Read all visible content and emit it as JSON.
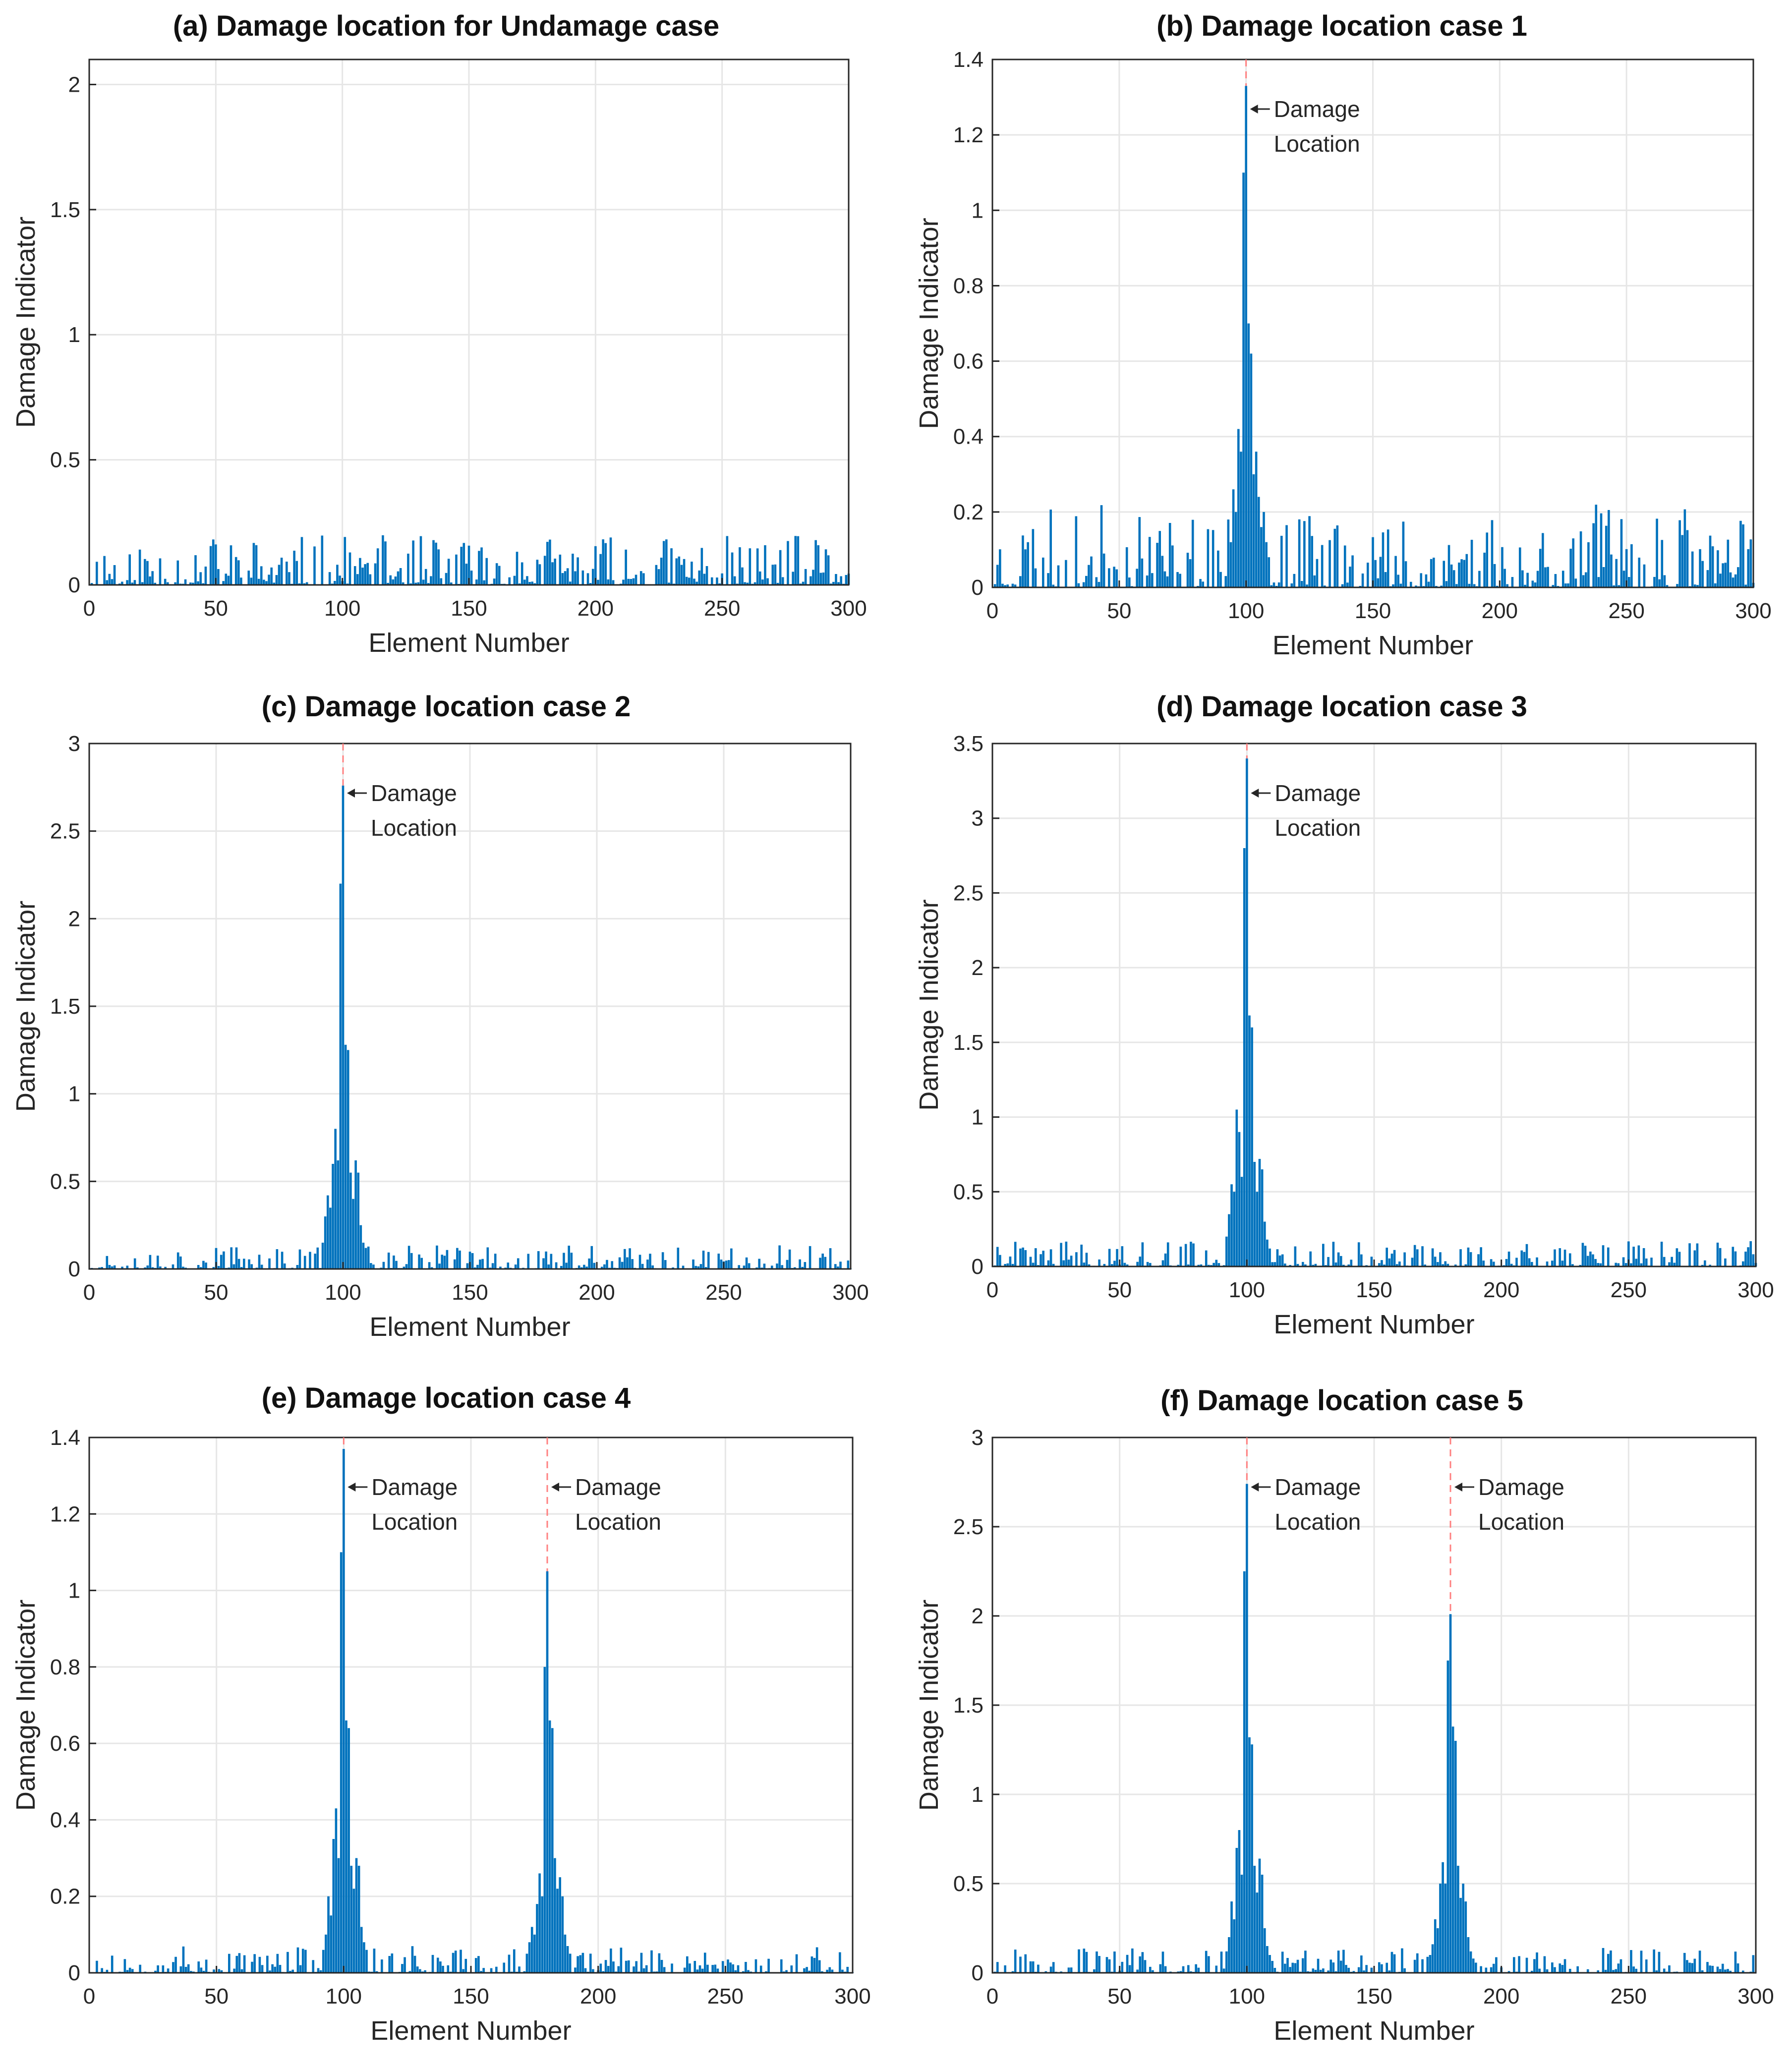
{
  "figure": {
    "series_color": "#0072BD",
    "marker_color": "#ff8080",
    "grid_color": "#e6e6e6"
  },
  "chart_data": [
    {
      "id": "a",
      "type": "bar",
      "title": "(a)  Damage location for Undamage case",
      "xlabel": "Element Number",
      "ylabel": "Damage Indicator",
      "xlim": [
        0,
        300
      ],
      "ylim": [
        0,
        2.1
      ],
      "xticks": [
        0,
        50,
        100,
        150,
        200,
        250,
        300
      ],
      "yticks": [
        0,
        0.5,
        1,
        1.5,
        2
      ],
      "ytick_labels": [
        "0",
        "0.5",
        "1",
        "1.5",
        "2"
      ],
      "noise_max": 0.2,
      "noise_seed": 11,
      "peaks": [],
      "damage_locations": [],
      "annotation_lines": []
    },
    {
      "id": "b",
      "type": "bar",
      "title": "(b)  Damage location case 1",
      "xlabel": "Element Number",
      "ylabel": "Damage Indicator",
      "xlim": [
        0,
        300
      ],
      "ylim": [
        0,
        1.4
      ],
      "xticks": [
        0,
        50,
        100,
        150,
        200,
        250,
        300
      ],
      "yticks": [
        0,
        0.2,
        0.4,
        0.6,
        0.8,
        1,
        1.2,
        1.4
      ],
      "ytick_labels": [
        "0",
        "0.2",
        "0.4",
        "0.6",
        "0.8",
        "1",
        "1.2",
        "1.4"
      ],
      "noise_max": 0.22,
      "noise_seed": 23,
      "peaks": [
        {
          "x": [
            93,
            94,
            95,
            96,
            97,
            98,
            99,
            100,
            101,
            102,
            103,
            104,
            105,
            106,
            107,
            108,
            109
          ],
          "y": [
            0.18,
            0.12,
            0.26,
            0.2,
            0.42,
            0.36,
            1.1,
            1.33,
            0.7,
            0.62,
            0.3,
            0.36,
            0.24,
            0.16,
            0.2,
            0.12,
            0.08
          ]
        }
      ],
      "damage_locations": [
        100
      ],
      "annotation_lines": [
        "Damage",
        "Location"
      ]
    },
    {
      "id": "c",
      "type": "bar",
      "title": "(c)    Damage location case 2",
      "xlabel": "Element Number",
      "ylabel": "Damage Indicator",
      "xlim": [
        0,
        300
      ],
      "ylim": [
        0,
        3
      ],
      "xticks": [
        0,
        50,
        100,
        150,
        200,
        250,
        300
      ],
      "yticks": [
        0,
        0.5,
        1,
        1.5,
        2,
        2.5,
        3
      ],
      "ytick_labels": [
        "0",
        "0.5",
        "1",
        "1.5",
        "2",
        "2.5",
        "3"
      ],
      "noise_max": 0.14,
      "noise_seed": 37,
      "peaks": [
        {
          "x": [
            92,
            93,
            94,
            95,
            96,
            97,
            98,
            99,
            100,
            101,
            102,
            103,
            104,
            105,
            106,
            107,
            108,
            109
          ],
          "y": [
            0.15,
            0.3,
            0.42,
            0.35,
            0.6,
            0.8,
            0.62,
            2.2,
            2.76,
            1.28,
            1.25,
            0.55,
            0.4,
            0.62,
            0.55,
            0.25,
            0.15,
            0.12
          ]
        }
      ],
      "damage_locations": [
        100
      ],
      "annotation_lines": [
        "Damage",
        "Location"
      ]
    },
    {
      "id": "d",
      "type": "bar",
      "title": "(d)    Damage location case 3",
      "xlabel": "Element Number",
      "ylabel": "Damage Indicator",
      "xlim": [
        0,
        300
      ],
      "ylim": [
        0,
        3.5
      ],
      "xticks": [
        0,
        50,
        100,
        150,
        200,
        250,
        300
      ],
      "yticks": [
        0,
        0.5,
        1,
        1.5,
        2,
        2.5,
        3,
        3.5
      ],
      "ytick_labels": [
        "0",
        "0.5",
        "1",
        "1.5",
        "2",
        "2.5",
        "3",
        "3.5"
      ],
      "noise_max": 0.17,
      "noise_seed": 41,
      "peaks": [
        {
          "x": [
            92,
            93,
            94,
            95,
            96,
            97,
            98,
            99,
            100,
            101,
            102,
            103,
            104,
            105,
            106,
            107,
            108,
            109
          ],
          "y": [
            0.2,
            0.35,
            0.55,
            0.5,
            1.05,
            0.9,
            0.6,
            2.8,
            3.4,
            1.68,
            1.6,
            0.7,
            0.5,
            0.72,
            0.65,
            0.3,
            0.18,
            0.12
          ]
        }
      ],
      "damage_locations": [
        100
      ],
      "annotation_lines": [
        "Damage",
        "Location"
      ]
    },
    {
      "id": "e",
      "type": "bar",
      "title": "(e)   Damage location case 4",
      "xlabel": "Element Number",
      "ylabel": "Damage Indicator",
      "xlim": [
        0,
        300
      ],
      "ylim": [
        0,
        1.4
      ],
      "xticks": [
        0,
        50,
        100,
        150,
        200,
        250,
        300
      ],
      "yticks": [
        0,
        0.2,
        0.4,
        0.6,
        0.8,
        1,
        1.2,
        1.4
      ],
      "ytick_labels": [
        "0",
        "0.2",
        "0.4",
        "0.6",
        "0.8",
        "1",
        "1.2",
        "1.4"
      ],
      "noise_max": 0.07,
      "noise_seed": 53,
      "peaks": [
        {
          "x": [
            92,
            93,
            94,
            95,
            96,
            97,
            98,
            99,
            100,
            101,
            102,
            103,
            104,
            105,
            106,
            107,
            108,
            109
          ],
          "y": [
            0.06,
            0.1,
            0.2,
            0.15,
            0.35,
            0.43,
            0.3,
            1.1,
            1.37,
            0.66,
            0.64,
            0.28,
            0.22,
            0.3,
            0.28,
            0.12,
            0.08,
            0.06
          ]
        },
        {
          "x": [
            172,
            173,
            174,
            175,
            176,
            177,
            178,
            179,
            180,
            181,
            182,
            183,
            184,
            185,
            186,
            187,
            188,
            189
          ],
          "y": [
            0.05,
            0.08,
            0.12,
            0.1,
            0.18,
            0.26,
            0.2,
            0.8,
            1.05,
            0.66,
            0.64,
            0.3,
            0.22,
            0.25,
            0.2,
            0.1,
            0.07,
            0.05
          ]
        }
      ],
      "damage_locations": [
        100,
        180
      ],
      "annotation_lines": [
        "Damage",
        "Location"
      ]
    },
    {
      "id": "f",
      "type": "bar",
      "title": "(f)     Damage location case 5",
      "xlabel": "Element Number",
      "ylabel": "Damage Indicator",
      "xlim": [
        0,
        300
      ],
      "ylim": [
        0,
        3
      ],
      "xticks": [
        0,
        50,
        100,
        150,
        200,
        250,
        300
      ],
      "yticks": [
        0,
        0.5,
        1,
        1.5,
        2,
        2.5,
        3
      ],
      "ytick_labels": [
        "0",
        "0.5",
        "1",
        "1.5",
        "2",
        "2.5",
        "3"
      ],
      "noise_max": 0.14,
      "noise_seed": 67,
      "peaks": [
        {
          "x": [
            92,
            93,
            94,
            95,
            96,
            97,
            98,
            99,
            100,
            101,
            102,
            103,
            104,
            105,
            106,
            107,
            108,
            109
          ],
          "y": [
            0.12,
            0.2,
            0.4,
            0.3,
            0.7,
            0.8,
            0.55,
            2.25,
            2.74,
            1.32,
            1.28,
            0.6,
            0.45,
            0.64,
            0.55,
            0.25,
            0.15,
            0.1
          ]
        },
        {
          "x": [
            172,
            173,
            174,
            175,
            176,
            177,
            178,
            179,
            180,
            181,
            182,
            183,
            184,
            185,
            186,
            187,
            188,
            189
          ],
          "y": [
            0.1,
            0.16,
            0.3,
            0.25,
            0.5,
            0.62,
            0.5,
            1.75,
            2.01,
            1.38,
            1.3,
            0.6,
            0.42,
            0.5,
            0.4,
            0.2,
            0.12,
            0.08
          ]
        }
      ],
      "damage_locations": [
        100,
        180
      ],
      "annotation_lines": [
        "Damage",
        "Location"
      ]
    }
  ]
}
